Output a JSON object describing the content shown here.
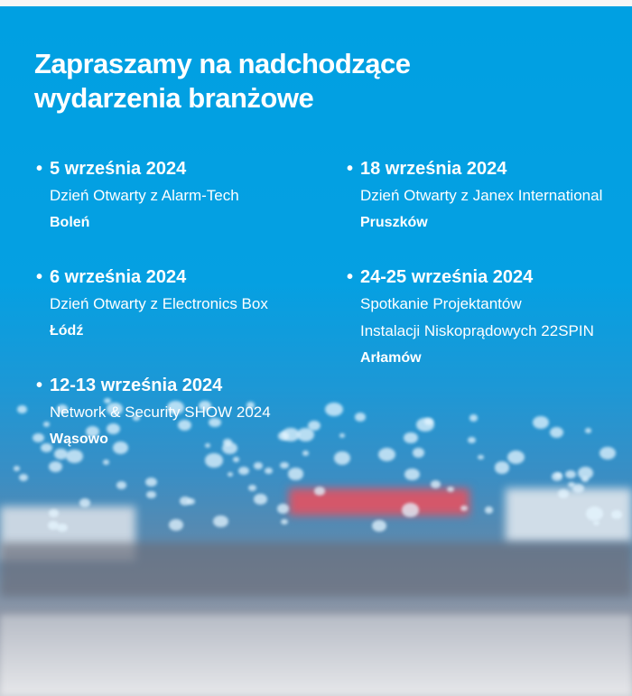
{
  "title": "Zapraszamy na nadchodzące wydarzenia branżowe",
  "colors": {
    "background": "#00a0e2",
    "text": "#ffffff"
  },
  "events_left": [
    {
      "date": "5 września 2024",
      "description": [
        "Dzień Otwarty z Alarm-Tech"
      ],
      "place": "Boleń"
    },
    {
      "date": "6 września 2024",
      "description": [
        "Dzień Otwarty z Electronics Box"
      ],
      "place": "Łódź"
    },
    {
      "date": "12-13 września 2024",
      "description": [
        "Network & Security SHOW 2024"
      ],
      "place": "Wąsowo"
    }
  ],
  "events_right": [
    {
      "date": "18 września 2024",
      "description": [
        "Dzień Otwarty z Janex International"
      ],
      "place": "Pruszków"
    },
    {
      "date": "24-25 września 2024",
      "description": [
        "Spotkanie Projektantów",
        "Instalacji Niskoprądowych 22SPIN"
      ],
      "place": "Arłamów"
    }
  ]
}
